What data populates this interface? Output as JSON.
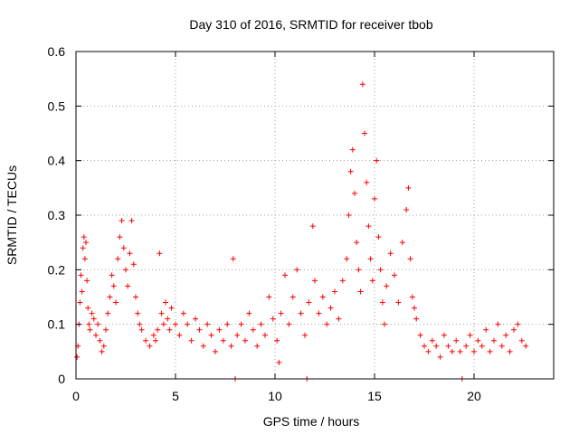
{
  "chart_data": {
    "type": "scatter",
    "title": "Day 310 of 2016, SRMTID for receiver tbob",
    "xlabel": "GPS time / hours",
    "ylabel": "SRMTID / TECUs",
    "xlim": [
      0,
      24
    ],
    "ylim": [
      0,
      0.6
    ],
    "xticks": [
      0,
      5,
      10,
      15,
      20
    ],
    "yticks": [
      0,
      0.1,
      0.2,
      0.3,
      0.4,
      0.5,
      0.6
    ],
    "xtick_labels": [
      "0",
      "5",
      "10",
      "15",
      "20"
    ],
    "ytick_labels": [
      "0",
      "0.1",
      "0.2",
      "0.3",
      "0.4",
      "0.5",
      "0.6"
    ],
    "grid": true,
    "marker": "+",
    "color": "#ff0000",
    "series": [
      {
        "name": "SRMTID",
        "points": [
          [
            0.05,
            0.04
          ],
          [
            0.1,
            0.06
          ],
          [
            0.15,
            0.1
          ],
          [
            0.2,
            0.14
          ],
          [
            0.25,
            0.19
          ],
          [
            0.3,
            0.16
          ],
          [
            0.35,
            0.24
          ],
          [
            0.4,
            0.26
          ],
          [
            0.45,
            0.22
          ],
          [
            0.5,
            0.25
          ],
          [
            0.55,
            0.18
          ],
          [
            0.6,
            0.13
          ],
          [
            0.65,
            0.1
          ],
          [
            0.7,
            0.09
          ],
          [
            0.8,
            0.12
          ],
          [
            0.9,
            0.11
          ],
          [
            1.0,
            0.08
          ],
          [
            1.1,
            0.1
          ],
          [
            1.2,
            0.07
          ],
          [
            1.3,
            0.05
          ],
          [
            1.4,
            0.06
          ],
          [
            1.5,
            0.09
          ],
          [
            1.6,
            0.12
          ],
          [
            1.7,
            0.15
          ],
          [
            1.8,
            0.19
          ],
          [
            1.9,
            0.17
          ],
          [
            2.0,
            0.14
          ],
          [
            2.1,
            0.22
          ],
          [
            2.2,
            0.26
          ],
          [
            2.3,
            0.29
          ],
          [
            2.4,
            0.24
          ],
          [
            2.5,
            0.2
          ],
          [
            2.6,
            0.17
          ],
          [
            2.7,
            0.23
          ],
          [
            2.8,
            0.29
          ],
          [
            2.9,
            0.21
          ],
          [
            3.0,
            0.15
          ],
          [
            3.1,
            0.12
          ],
          [
            3.2,
            0.1
          ],
          [
            3.3,
            0.09
          ],
          [
            3.5,
            0.07
          ],
          [
            3.7,
            0.06
          ],
          [
            3.9,
            0.08
          ],
          [
            4.0,
            0.07
          ],
          [
            4.1,
            0.09
          ],
          [
            4.2,
            0.23
          ],
          [
            4.3,
            0.12
          ],
          [
            4.4,
            0.1
          ],
          [
            4.5,
            0.14
          ],
          [
            4.6,
            0.11
          ],
          [
            4.7,
            0.09
          ],
          [
            4.8,
            0.13
          ],
          [
            5.0,
            0.1
          ],
          [
            5.2,
            0.08
          ],
          [
            5.4,
            0.12
          ],
          [
            5.6,
            0.1
          ],
          [
            5.8,
            0.07
          ],
          [
            6.0,
            0.11
          ],
          [
            6.2,
            0.09
          ],
          [
            6.4,
            0.06
          ],
          [
            6.6,
            0.1
          ],
          [
            6.8,
            0.08
          ],
          [
            7.0,
            0.05
          ],
          [
            7.2,
            0.09
          ],
          [
            7.4,
            0.07
          ],
          [
            7.6,
            0.1
          ],
          [
            7.8,
            0.06
          ],
          [
            7.9,
            0.22
          ],
          [
            8.0,
            0.0
          ],
          [
            8.1,
            0.08
          ],
          [
            8.3,
            0.1
          ],
          [
            8.5,
            0.07
          ],
          [
            8.7,
            0.12
          ],
          [
            8.9,
            0.09
          ],
          [
            9.1,
            0.06
          ],
          [
            9.3,
            0.1
          ],
          [
            9.5,
            0.08
          ],
          [
            9.7,
            0.15
          ],
          [
            9.9,
            0.11
          ],
          [
            10.1,
            0.07
          ],
          [
            10.2,
            0.03
          ],
          [
            10.3,
            0.12
          ],
          [
            10.5,
            0.19
          ],
          [
            10.7,
            0.1
          ],
          [
            10.9,
            0.15
          ],
          [
            11.1,
            0.2
          ],
          [
            11.3,
            0.12
          ],
          [
            11.5,
            0.08
          ],
          [
            11.6,
            0.0
          ],
          [
            11.7,
            0.14
          ],
          [
            11.9,
            0.28
          ],
          [
            12.0,
            0.18
          ],
          [
            12.2,
            0.12
          ],
          [
            12.4,
            0.15
          ],
          [
            12.6,
            0.1
          ],
          [
            12.8,
            0.13
          ],
          [
            13.0,
            0.16
          ],
          [
            13.2,
            0.11
          ],
          [
            13.4,
            0.18
          ],
          [
            13.6,
            0.22
          ],
          [
            13.7,
            0.3
          ],
          [
            13.8,
            0.38
          ],
          [
            13.9,
            0.42
          ],
          [
            14.0,
            0.34
          ],
          [
            14.1,
            0.25
          ],
          [
            14.2,
            0.2
          ],
          [
            14.3,
            0.16
          ],
          [
            14.4,
            0.54
          ],
          [
            14.5,
            0.45
          ],
          [
            14.6,
            0.36
          ],
          [
            14.7,
            0.28
          ],
          [
            14.8,
            0.22
          ],
          [
            14.9,
            0.18
          ],
          [
            15.0,
            0.33
          ],
          [
            15.1,
            0.4
          ],
          [
            15.2,
            0.26
          ],
          [
            15.3,
            0.2
          ],
          [
            15.4,
            0.14
          ],
          [
            15.5,
            0.1
          ],
          [
            15.6,
            0.17
          ],
          [
            15.8,
            0.23
          ],
          [
            16.0,
            0.19
          ],
          [
            16.2,
            0.14
          ],
          [
            16.4,
            0.25
          ],
          [
            16.6,
            0.31
          ],
          [
            16.7,
            0.35
          ],
          [
            16.8,
            0.22
          ],
          [
            16.9,
            0.15
          ],
          [
            17.0,
            0.13
          ],
          [
            17.1,
            0.11
          ],
          [
            17.3,
            0.08
          ],
          [
            17.5,
            0.06
          ],
          [
            17.7,
            0.05
          ],
          [
            17.9,
            0.07
          ],
          [
            18.1,
            0.06
          ],
          [
            18.3,
            0.04
          ],
          [
            18.5,
            0.08
          ],
          [
            18.7,
            0.06
          ],
          [
            18.9,
            0.05
          ],
          [
            19.1,
            0.07
          ],
          [
            19.3,
            0.05
          ],
          [
            19.4,
            0.0
          ],
          [
            19.6,
            0.06
          ],
          [
            19.8,
            0.08
          ],
          [
            20.0,
            0.05
          ],
          [
            20.2,
            0.07
          ],
          [
            20.4,
            0.06
          ],
          [
            20.6,
            0.09
          ],
          [
            20.8,
            0.05
          ],
          [
            21.0,
            0.07
          ],
          [
            21.2,
            0.1
          ],
          [
            21.4,
            0.06
          ],
          [
            21.6,
            0.08
          ],
          [
            21.8,
            0.05
          ],
          [
            22.0,
            0.09
          ],
          [
            22.2,
            0.1
          ],
          [
            22.4,
            0.07
          ],
          [
            22.6,
            0.06
          ]
        ]
      }
    ]
  }
}
